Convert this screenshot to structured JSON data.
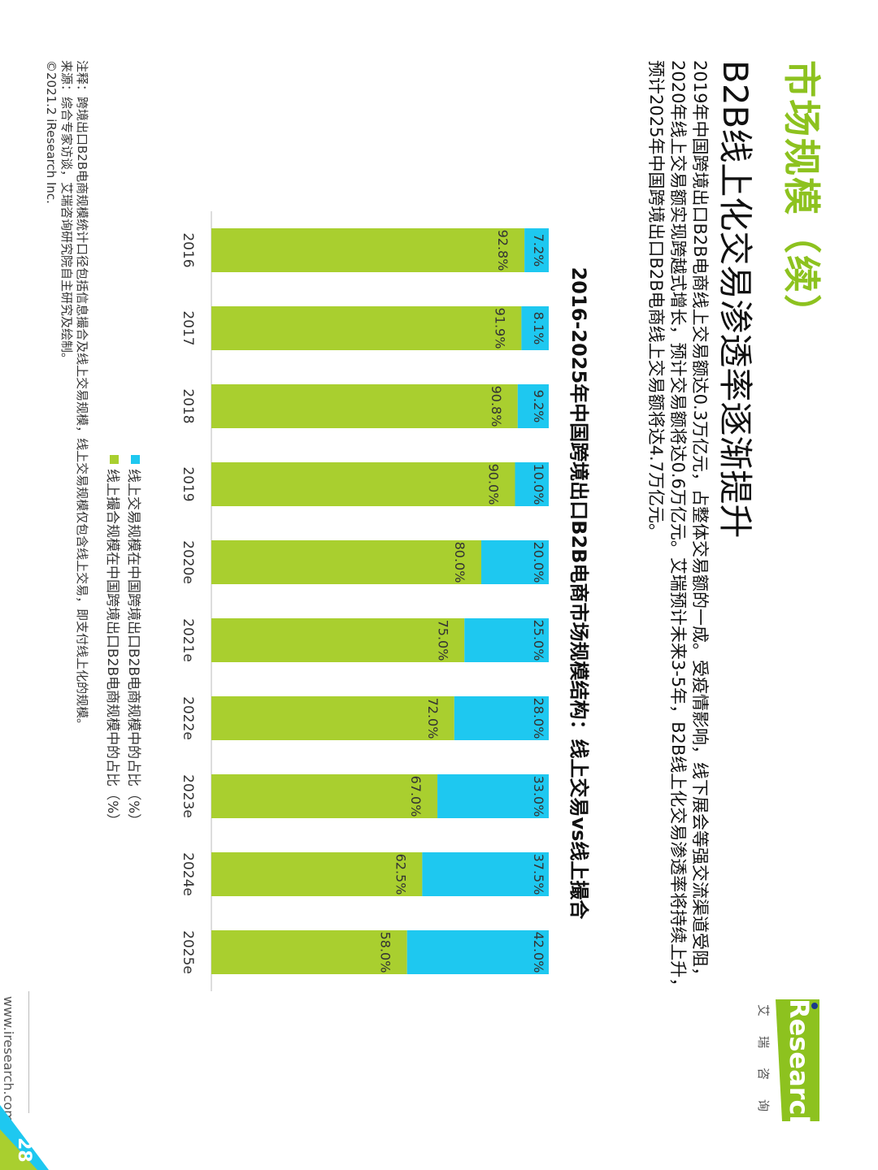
{
  "page": {
    "title": "市场规模（续）",
    "subtitle": "B2B线上化交易渗透率逐渐提升",
    "description": [
      "2019年中国跨境出口B2B电商线上交易额达0.3万亿元，占整体交易额的一成。受疫情影响，线下展会等强交流渠道受阻，",
      "2020年线上交易额实现跨越式增长，预计交易额将达0.6万亿元。艾瑞预计未来3-5年，B2B线上化交易渗透率将持续上升，",
      "预计2025年中国跨境出口B2B电商线上交易额将达4.7万亿元。"
    ],
    "chart_title": "2016-2025年中国跨境出口B2B电商市场规模结构：线上交易vs线上撮合",
    "notes": [
      "注释：跨境出口B2B电商规模统计口径包括信息撮合及线上交易规模，线上交易规模仅包含线上交易，即支付线上化的规模。",
      "来源：综合专家访谈，艾瑞咨询研究院自主研究及绘制。",
      "©2021.2 iResearch Inc."
    ],
    "url": "www.iresearch.com.cn",
    "page_number": "28",
    "logo_text": "iResearch",
    "logo_cn": "艾瑞咨询"
  },
  "colors": {
    "accent": "#8dc21f",
    "online": "#1ec8f0",
    "matchmaking": "#a9cf2f",
    "logo_green": "#8dc21f"
  },
  "chart_data": {
    "type": "bar",
    "stacked": true,
    "percent": true,
    "categories": [
      "2016",
      "2017",
      "2018",
      "2019",
      "2020e",
      "2021e",
      "2022e",
      "2023e",
      "2024e",
      "2025e"
    ],
    "series": [
      {
        "name": "线上交易规模在中国跨境出口B2B电商规模中的占比（%）",
        "values": [
          7.2,
          8.1,
          9.2,
          10.0,
          20.0,
          25.0,
          28.0,
          33.0,
          37.5,
          42.0
        ],
        "labels": [
          "7.2%",
          "8.1%",
          "9.2%",
          "10.0%",
          "20.0%",
          "25.0%",
          "28.0%",
          "33.0%",
          "37.5%",
          "42.0%"
        ]
      },
      {
        "name": "线上撮合规模在中国跨境出口B2B电商规模中的占比（%）",
        "values": [
          92.8,
          91.9,
          90.8,
          90.0,
          80.0,
          75.0,
          72.0,
          67.0,
          62.5,
          58.0
        ],
        "labels": [
          "92.8%",
          "91.9%",
          "90.8%",
          "90.0%",
          "80.0%",
          "75.0%",
          "72.0%",
          "67.0%",
          "62.5%",
          "58.0%"
        ]
      }
    ],
    "ylim": [
      0,
      100
    ],
    "legend_position": "bottom-left"
  }
}
